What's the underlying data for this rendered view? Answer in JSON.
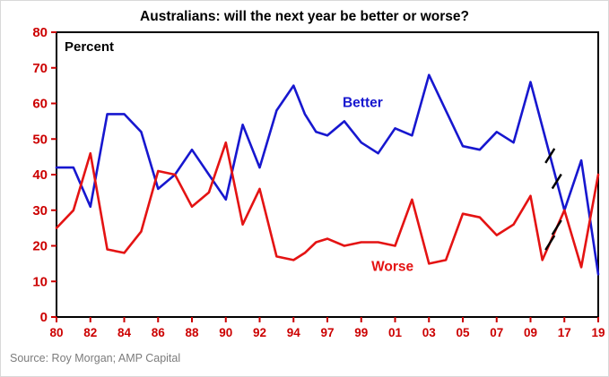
{
  "chart_data": {
    "type": "line",
    "title": "Australians:  will the next year be better or worse?",
    "ylabel_inside": "Percent",
    "source": "Source: Roy Morgan; AMP Capital",
    "ylim": [
      0,
      80
    ],
    "yticks": [
      0,
      10,
      20,
      30,
      40,
      50,
      60,
      70,
      80
    ],
    "x_tick_labels": [
      "80",
      "82",
      "84",
      "86",
      "88",
      "90",
      "92",
      "94",
      "97",
      "99",
      "01",
      "03",
      "05",
      "07",
      "09",
      "17",
      "19"
    ],
    "x_max_slot": 32,
    "grid": false,
    "legend": "inline-labels",
    "axis_break": {
      "after_label": "09",
      "slots": [
        29.15,
        29.55
      ]
    },
    "colors": {
      "axis_labels": "#cc0000",
      "title": "#000000",
      "plot_border": "#000000",
      "source_text": "#7c7c7c"
    },
    "series": [
      {
        "name": "Better",
        "color": "#1717cf",
        "label_pos": {
          "slot": 16.9,
          "value": 59
        },
        "x": [
          0,
          1,
          2,
          3,
          4,
          5,
          6,
          7,
          8,
          9,
          10,
          11,
          12,
          13,
          14,
          14.67,
          15.33,
          16,
          17,
          18,
          19,
          20,
          21,
          22,
          23,
          24,
          25,
          26,
          27,
          28,
          30,
          31,
          32
        ],
        "values": [
          42,
          42,
          31,
          57,
          57,
          52,
          36,
          40,
          47,
          40,
          33,
          54,
          42,
          58,
          65,
          57,
          52,
          51,
          55,
          49,
          46,
          53,
          51,
          68,
          58,
          48,
          47,
          52,
          49,
          66,
          30,
          44,
          12
        ]
      },
      {
        "name": "Worse",
        "color": "#e41313",
        "label_pos": {
          "slot": 18.6,
          "value": 13
        },
        "x": [
          0,
          1,
          2,
          3,
          4,
          5,
          6,
          7,
          8,
          9,
          10,
          11,
          12,
          13,
          14,
          14.67,
          15.33,
          16,
          17,
          18,
          19,
          20,
          21,
          22,
          23,
          24,
          25,
          26,
          27,
          28,
          28.7,
          30,
          31,
          32
        ],
        "values": [
          25,
          30,
          46,
          19,
          18,
          24,
          41,
          40,
          31,
          35,
          49,
          26,
          36,
          17,
          16,
          18,
          21,
          22,
          20,
          21,
          21,
          20,
          33,
          15,
          16,
          29,
          28,
          23,
          26,
          34,
          16,
          30,
          14,
          40
        ]
      }
    ]
  }
}
